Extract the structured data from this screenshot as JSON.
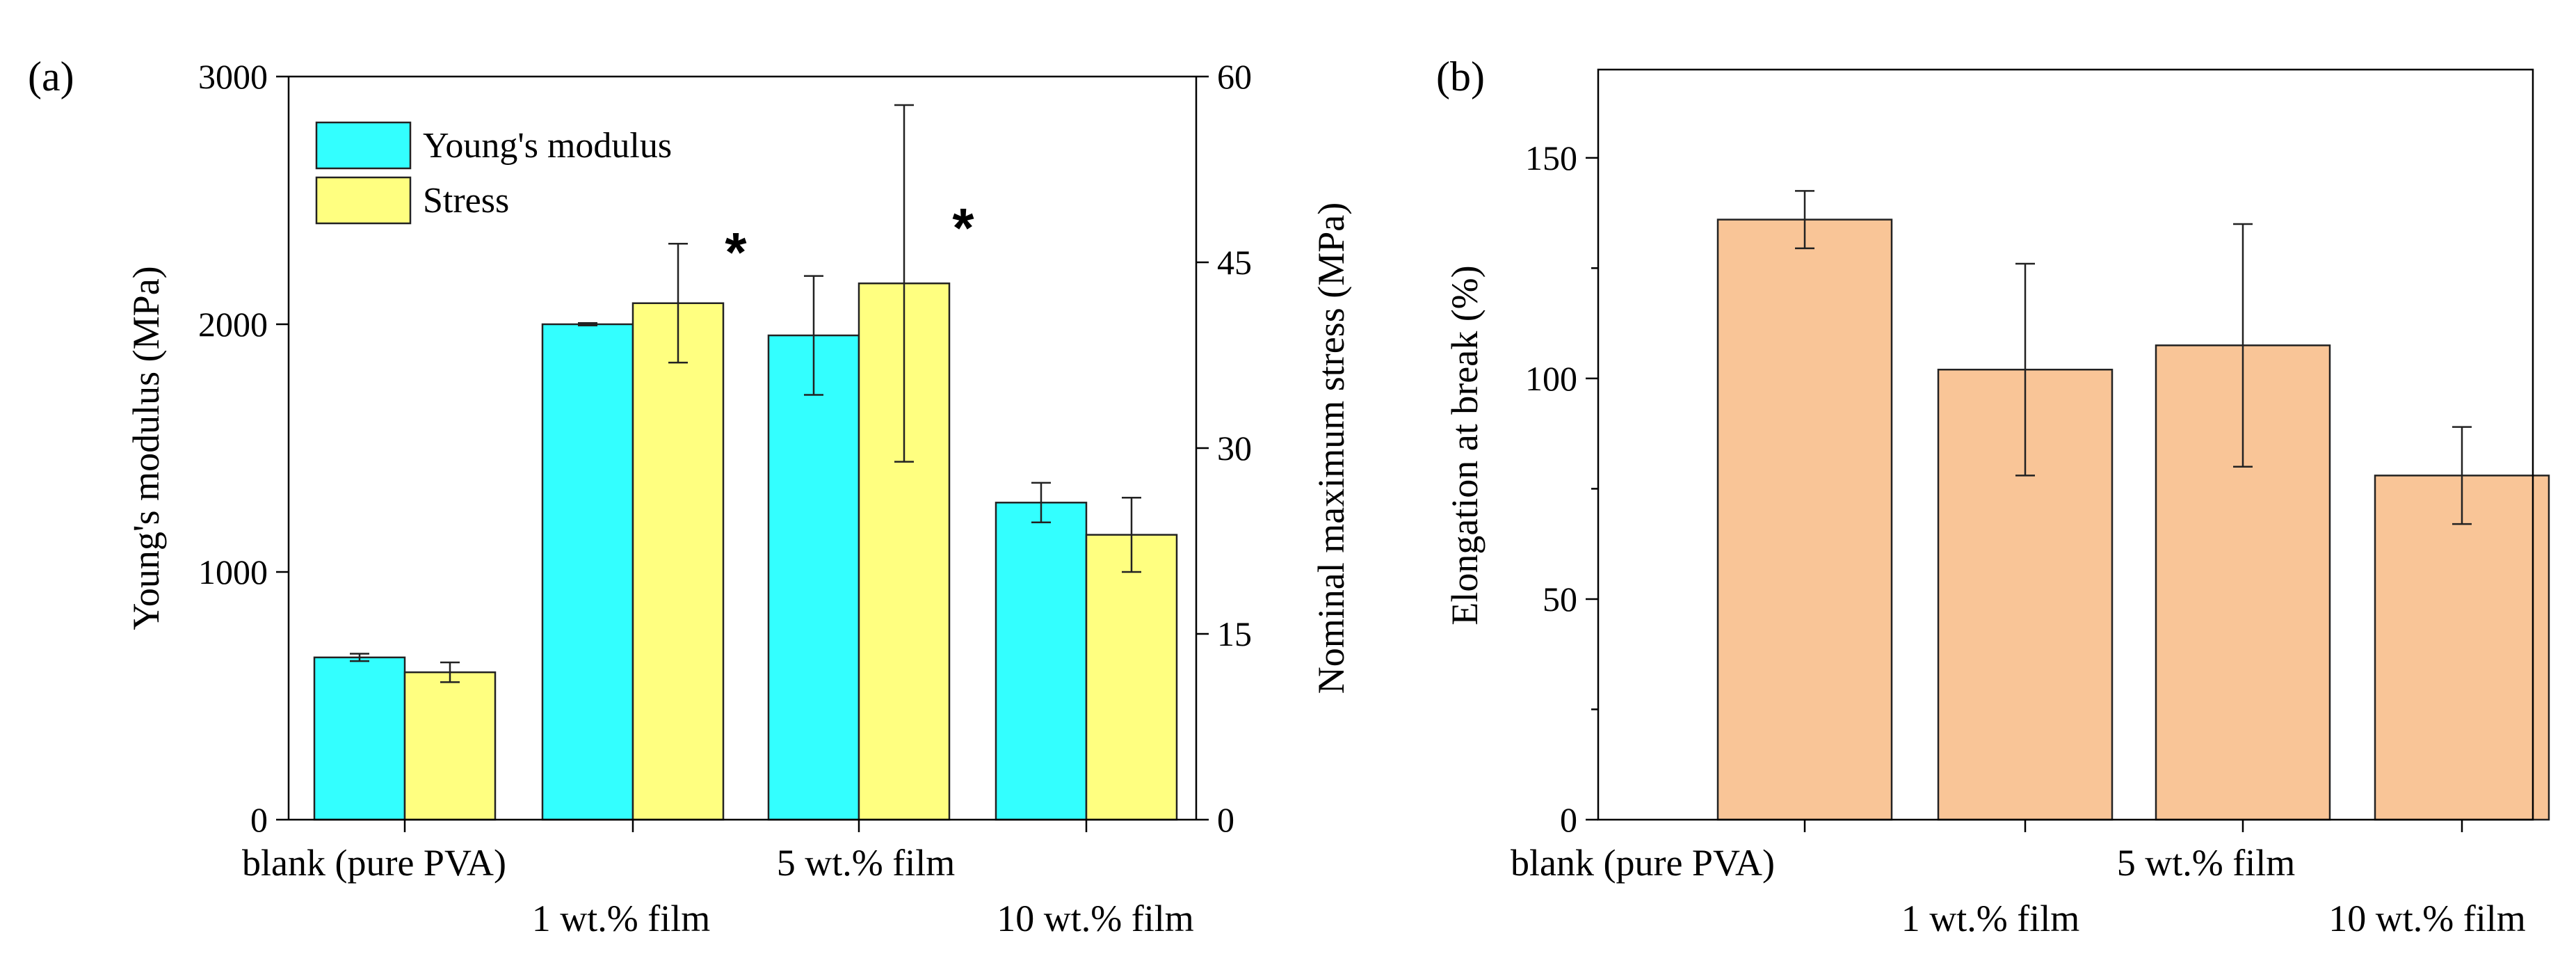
{
  "chart_data": [
    {
      "panel": "(a)",
      "type": "bar",
      "categories": [
        "blank (pure PVA)",
        "1 wt.% film",
        "5 wt.% film",
        "10 wt.% film"
      ],
      "y_left": {
        "label": "Young's modulus (MPa)",
        "lim": [
          0,
          3000
        ],
        "ticks": [
          0,
          1000,
          2000,
          3000
        ]
      },
      "y_right": {
        "label": "Nominal maximum stress (MPa)",
        "lim": [
          0,
          60
        ],
        "ticks": [
          0,
          15,
          30,
          45,
          60
        ]
      },
      "series": [
        {
          "name": "Young's modulus",
          "axis": "left",
          "color": "#33ffff",
          "values": [
            655,
            2000,
            1955,
            1280
          ],
          "errors": [
            15,
            5,
            240,
            80
          ]
        },
        {
          "name": "Stress",
          "axis": "right",
          "color": "#ffff80",
          "values": [
            11.9,
            41.7,
            43.3,
            23.0
          ],
          "errors": [
            0.8,
            4.8,
            14.4,
            3.0
          ]
        }
      ],
      "annotations": [
        {
          "text": "*",
          "category": "1 wt.% film"
        },
        {
          "text": "*",
          "category": "5 wt.% film"
        }
      ],
      "legend": "top-left"
    },
    {
      "panel": "(b)",
      "type": "bar",
      "categories": [
        "blank (pure PVA)",
        "1 wt.% film",
        "5 wt.% film",
        "10 wt.% film"
      ],
      "y": {
        "label": "Elongation at break (%)",
        "lim": [
          0,
          170
        ],
        "ticks": [
          0,
          50,
          100,
          150
        ]
      },
      "series": [
        {
          "name": "Elongation at break",
          "color": "#f9c597",
          "values": [
            136,
            102,
            107.5,
            78
          ],
          "errors": [
            6.5,
            24,
            27.5,
            11
          ]
        }
      ]
    }
  ]
}
